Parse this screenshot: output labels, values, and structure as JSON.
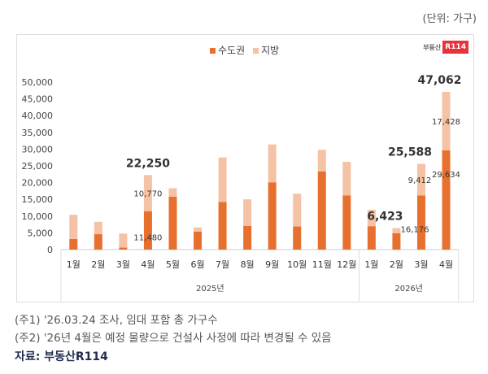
{
  "unit_label": "(단위: 가구)",
  "logo": {
    "text": "부동산",
    "badge": "R114"
  },
  "notes": [
    "(주1) '26.03.24 조사, 임대 포함 총 가구수",
    "(주2) '26년 4월은 예정 물량으로 건설사 사정에 따라 변경될 수 있음"
  ],
  "source": "자료: 부동산R114",
  "colors": {
    "capital": "#E8702F",
    "local": "#F5C2A5"
  },
  "chart_data": {
    "type": "bar",
    "stacked": true,
    "categories": [
      "1월",
      "2월",
      "3월",
      "4월",
      "5월",
      "6월",
      "7월",
      "8월",
      "9월",
      "10월",
      "11월",
      "12월",
      "1월",
      "2월",
      "3월",
      "4월"
    ],
    "groups": [
      {
        "label": "2025년",
        "count": 12
      },
      {
        "label": "2026년",
        "count": 4
      }
    ],
    "series": [
      {
        "name": "수도권",
        "values": [
          3200,
          4600,
          600,
          11480,
          15800,
          5400,
          14200,
          7100,
          20100,
          6900,
          23300,
          16200,
          7000,
          4900,
          16176,
          29634
        ]
      },
      {
        "name": "지방",
        "values": [
          7200,
          3700,
          4200,
          10770,
          2500,
          1200,
          13300,
          7900,
          11300,
          9800,
          6500,
          10000,
          4900,
          1523,
          9412,
          17428
        ]
      }
    ],
    "total_labels": {
      "3": "22,250",
      "13": "6,423",
      "14": "25,588",
      "15": "47,062"
    },
    "segment_labels": {
      "3": {
        "capital": "11,480",
        "local": "10,770"
      },
      "14": {
        "capital": "16,176",
        "local": "9,412"
      },
      "15": {
        "capital": "29,634",
        "local": "17,428"
      }
    },
    "ylim": [
      0,
      50000
    ],
    "yticks": [
      0,
      5000,
      10000,
      15000,
      20000,
      25000,
      30000,
      35000,
      40000,
      45000,
      50000
    ],
    "ytick_labels": [
      "0",
      "5,000",
      "10,000",
      "15,000",
      "20,000",
      "25,000",
      "30,000",
      "35,000",
      "40,000",
      "45,000",
      "50,000"
    ],
    "legend": [
      "수도권",
      "지방"
    ],
    "legend_position": "top-center",
    "grid": false
  }
}
